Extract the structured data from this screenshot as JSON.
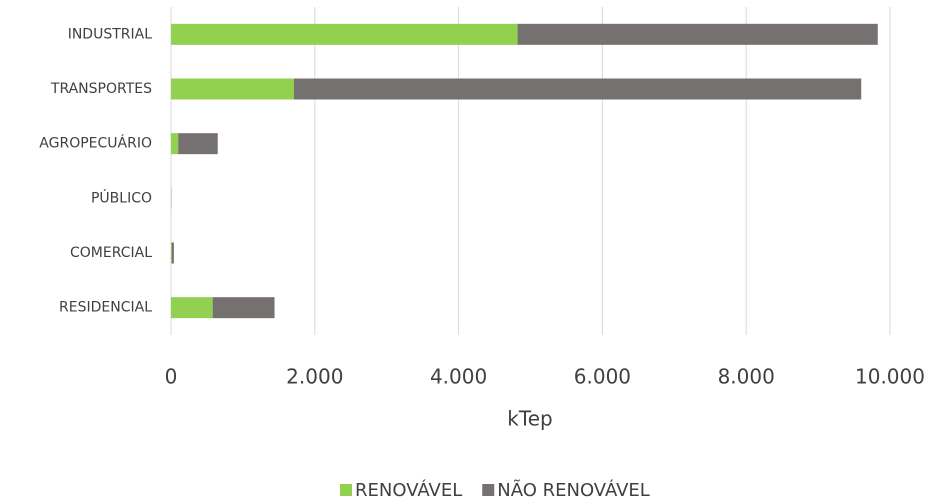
{
  "chart_data": {
    "type": "bar",
    "orientation": "horizontal",
    "stacked": true,
    "categories": [
      "INDUSTRIAL",
      "TRANSPORTES",
      "AGROPECUÁRIO",
      "PÚBLICO",
      "COMERCIAL",
      "RESIDENCIAL"
    ],
    "series": [
      {
        "name": "RENOVÁVEL",
        "color": "#92d050",
        "values": [
          4820,
          1710,
          100,
          2,
          10,
          580
        ]
      },
      {
        "name": "NÃO RENOVÁVEL",
        "color": "#767171",
        "values": [
          5010,
          7890,
          550,
          3,
          30,
          860
        ]
      }
    ],
    "x_label": "kTep",
    "xlim": [
      0,
      10000
    ],
    "xticks": [
      0,
      {
        "value": 2000,
        "label": "2.000"
      },
      {
        "value": 4000,
        "label": "4.000"
      },
      {
        "value": 6000,
        "label": "6.000"
      },
      {
        "value": 8000,
        "label": "8.000"
      },
      {
        "value": 10000,
        "label": "10.000"
      }
    ],
    "grid": true,
    "legend": "bottom"
  }
}
